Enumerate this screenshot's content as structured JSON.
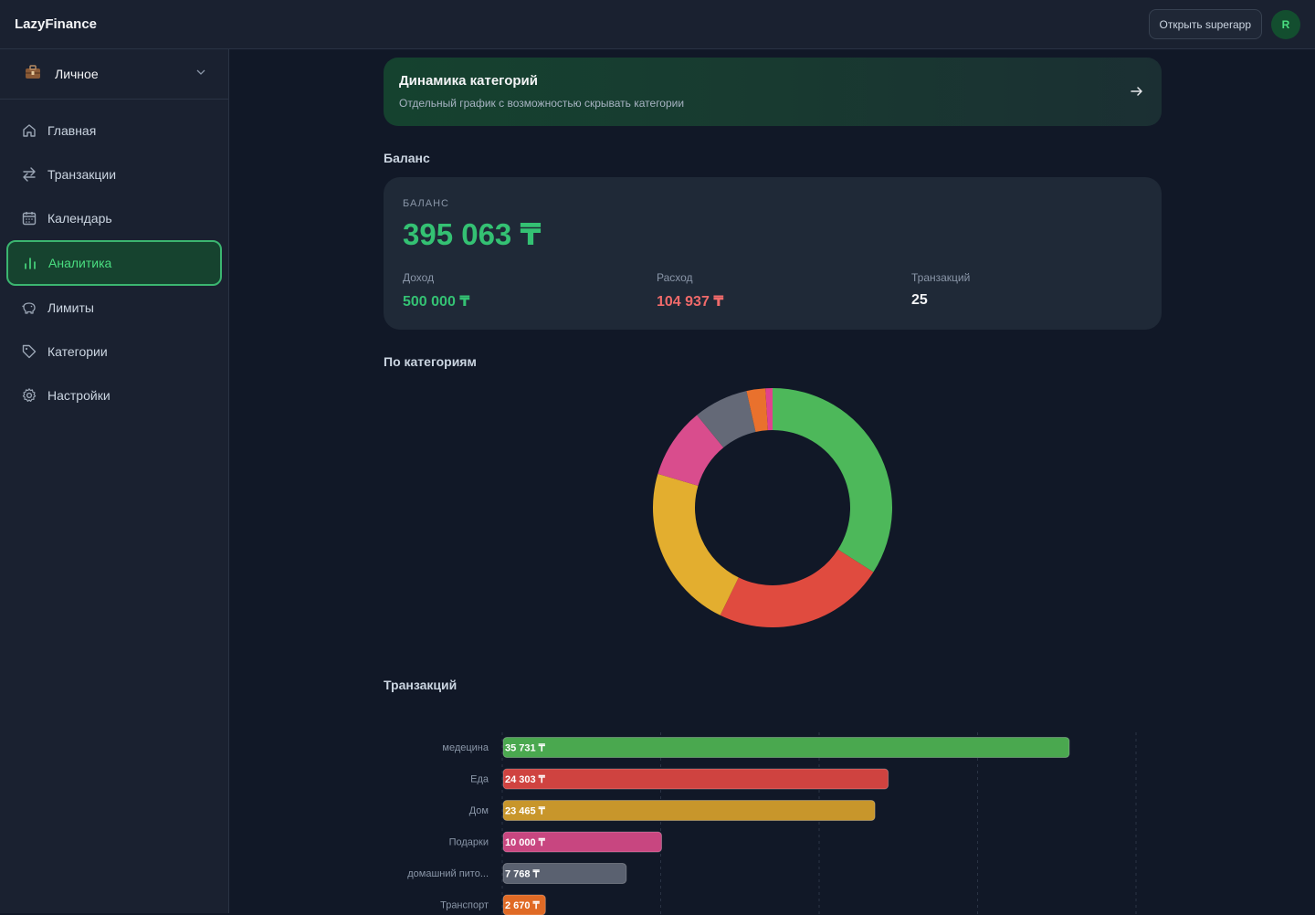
{
  "header": {
    "brand": "LazyFinance",
    "superapp_label": "Открыть superapp",
    "avatar_initial": "R"
  },
  "sidebar": {
    "account_icon": "briefcase-icon",
    "account_label": "Личное",
    "items": [
      {
        "label": "Главная",
        "icon": "home-icon",
        "active": false
      },
      {
        "label": "Транзакции",
        "icon": "transfer-icon",
        "active": false
      },
      {
        "label": "Календарь",
        "icon": "calendar-icon",
        "active": false
      },
      {
        "label": "Аналитика",
        "icon": "bar-chart-icon",
        "active": true
      },
      {
        "label": "Лимиты",
        "icon": "piggy-bank-icon",
        "active": false
      },
      {
        "label": "Категории",
        "icon": "tag-icon",
        "active": false
      },
      {
        "label": "Настройки",
        "icon": "gear-icon",
        "active": false
      }
    ]
  },
  "promo": {
    "title": "Динамика категорий",
    "subtitle": "Отдельный график с возможностью скрывать категории"
  },
  "balance": {
    "section_title": "Баланс",
    "caption": "БАЛАНС",
    "value": "395 063 ₸",
    "income_label": "Доход",
    "income_value": "500 000 ₸",
    "expense_label": "Расход",
    "expense_value": "104 937 ₸",
    "tx_label": "Транзакций",
    "tx_value": "25"
  },
  "colors": {
    "accent": "#34c173",
    "expense": "#f06a6a",
    "active_bg": "#16432f",
    "active_border": "#3bb570"
  },
  "categories_section_title": "По категориям",
  "transactions_section_title": "Транзакций",
  "chart_data": [
    {
      "type": "pie",
      "title": "По категориям",
      "categories": [
        "медецина",
        "Еда",
        "Дом",
        "Подарки",
        "домашний пито...",
        "Транспорт",
        ""
      ],
      "values": [
        35731,
        24303,
        23465,
        10000,
        7768,
        2670,
        1000
      ],
      "colors": [
        "#4db85a",
        "#e04b3f",
        "#e3ae2f",
        "#d94d8d",
        "#646977",
        "#e9712d",
        "#e0428f"
      ]
    },
    {
      "type": "bar",
      "orientation": "horizontal",
      "title": "Транзакций",
      "categories": [
        "медецина",
        "Еда",
        "Дом",
        "Подарки",
        "домашний пито...",
        "Транспорт"
      ],
      "values": [
        35731,
        24303,
        23465,
        10000,
        7768,
        2670
      ],
      "labels": [
        "35 731 ₸",
        "24 303 ₸",
        "23 465 ₸",
        "10 000 ₸",
        "7 768 ₸",
        "2 670 ₸"
      ],
      "colors": [
        "#4aa84f",
        "#cf4340",
        "#c8962b",
        "#c84680",
        "#5a6170",
        "#e06a25"
      ],
      "xlim": [
        0,
        40000
      ],
      "grid": true
    }
  ]
}
